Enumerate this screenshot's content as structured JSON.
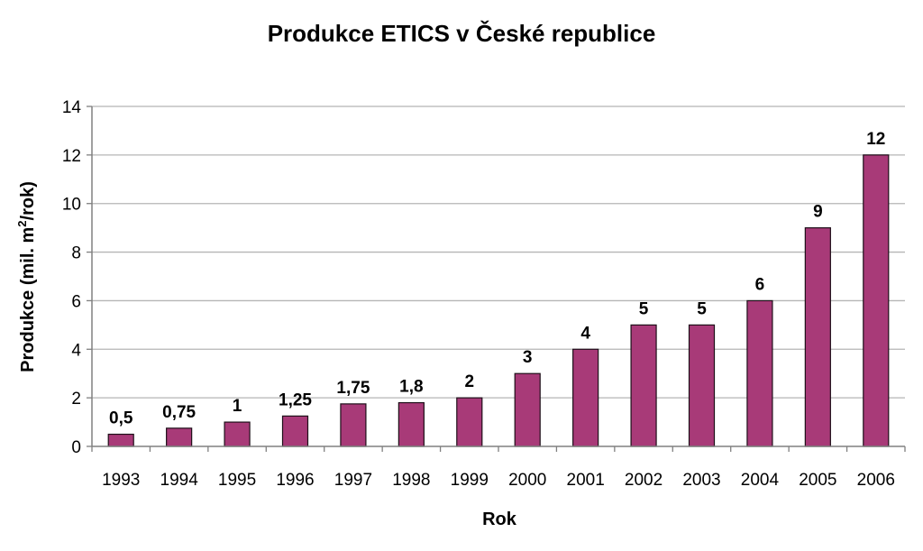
{
  "chart_data": {
    "type": "bar",
    "title": "Produkce ETICS v České republice",
    "xlabel": "Rok",
    "ylabel_parts": {
      "before": "Produkce (mil. m",
      "superscript": "2",
      "after": "/rok)"
    },
    "categories": [
      "1993",
      "1994",
      "1995",
      "1996",
      "1997",
      "1998",
      "1999",
      "2000",
      "2001",
      "2002",
      "2003",
      "2004",
      "2005",
      "2006"
    ],
    "values": [
      0.5,
      0.75,
      1,
      1.25,
      1.75,
      1.8,
      2,
      3,
      4,
      5,
      5,
      6,
      9,
      12
    ],
    "value_labels": [
      "0,5",
      "0,75",
      "1",
      "1,25",
      "1,75",
      "1,8",
      "2",
      "3",
      "4",
      "5",
      "5",
      "6",
      "9",
      "12"
    ],
    "ylim": [
      0,
      14
    ],
    "yticks": [
      0,
      2,
      4,
      6,
      8,
      10,
      12,
      14
    ],
    "grid": true,
    "legend": "none",
    "colors": {
      "bar_fill": "#a83a78",
      "bar_stroke": "#1e0f19",
      "grid": "#b5b5b5",
      "axis": "#808080"
    }
  }
}
